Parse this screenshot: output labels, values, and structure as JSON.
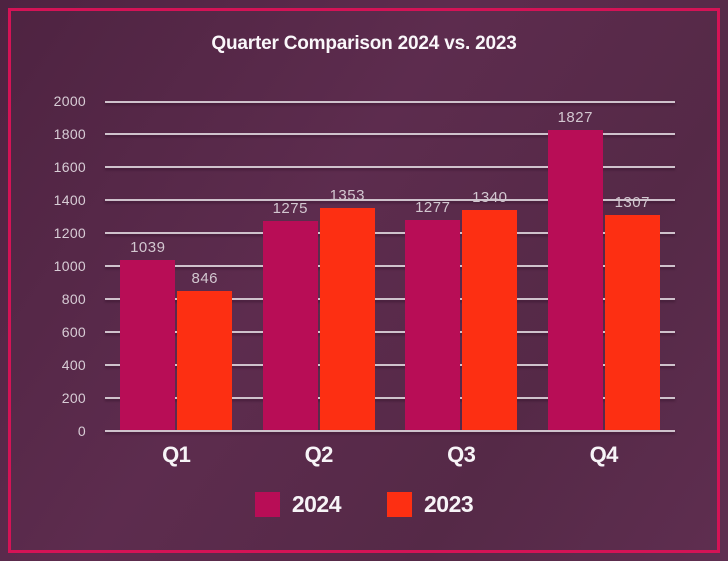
{
  "window": {
    "background_color": "#572a4a",
    "border_color": "#d41356"
  },
  "chart_data": {
    "type": "bar",
    "title": "Quarter Comparison 2024 vs. 2023",
    "categories": [
      "Q1",
      "Q2",
      "Q3",
      "Q4"
    ],
    "series": [
      {
        "name": "2024",
        "color": "#b80d56",
        "values": [
          1039,
          1275,
          1277,
          1827
        ]
      },
      {
        "name": "2023",
        "color": "#fd2f12",
        "values": [
          846,
          1353,
          1340,
          1307
        ]
      }
    ],
    "xlabel": "",
    "ylabel": "",
    "ylim": [
      0,
      2000
    ],
    "ytick_step": 200,
    "grid": "horizontal",
    "gridline_color": "#cfc2cc",
    "data_labels": true,
    "data_label_color": "#d2c7d0",
    "legend_position": "bottom",
    "text_color": "#f7f4f7"
  }
}
